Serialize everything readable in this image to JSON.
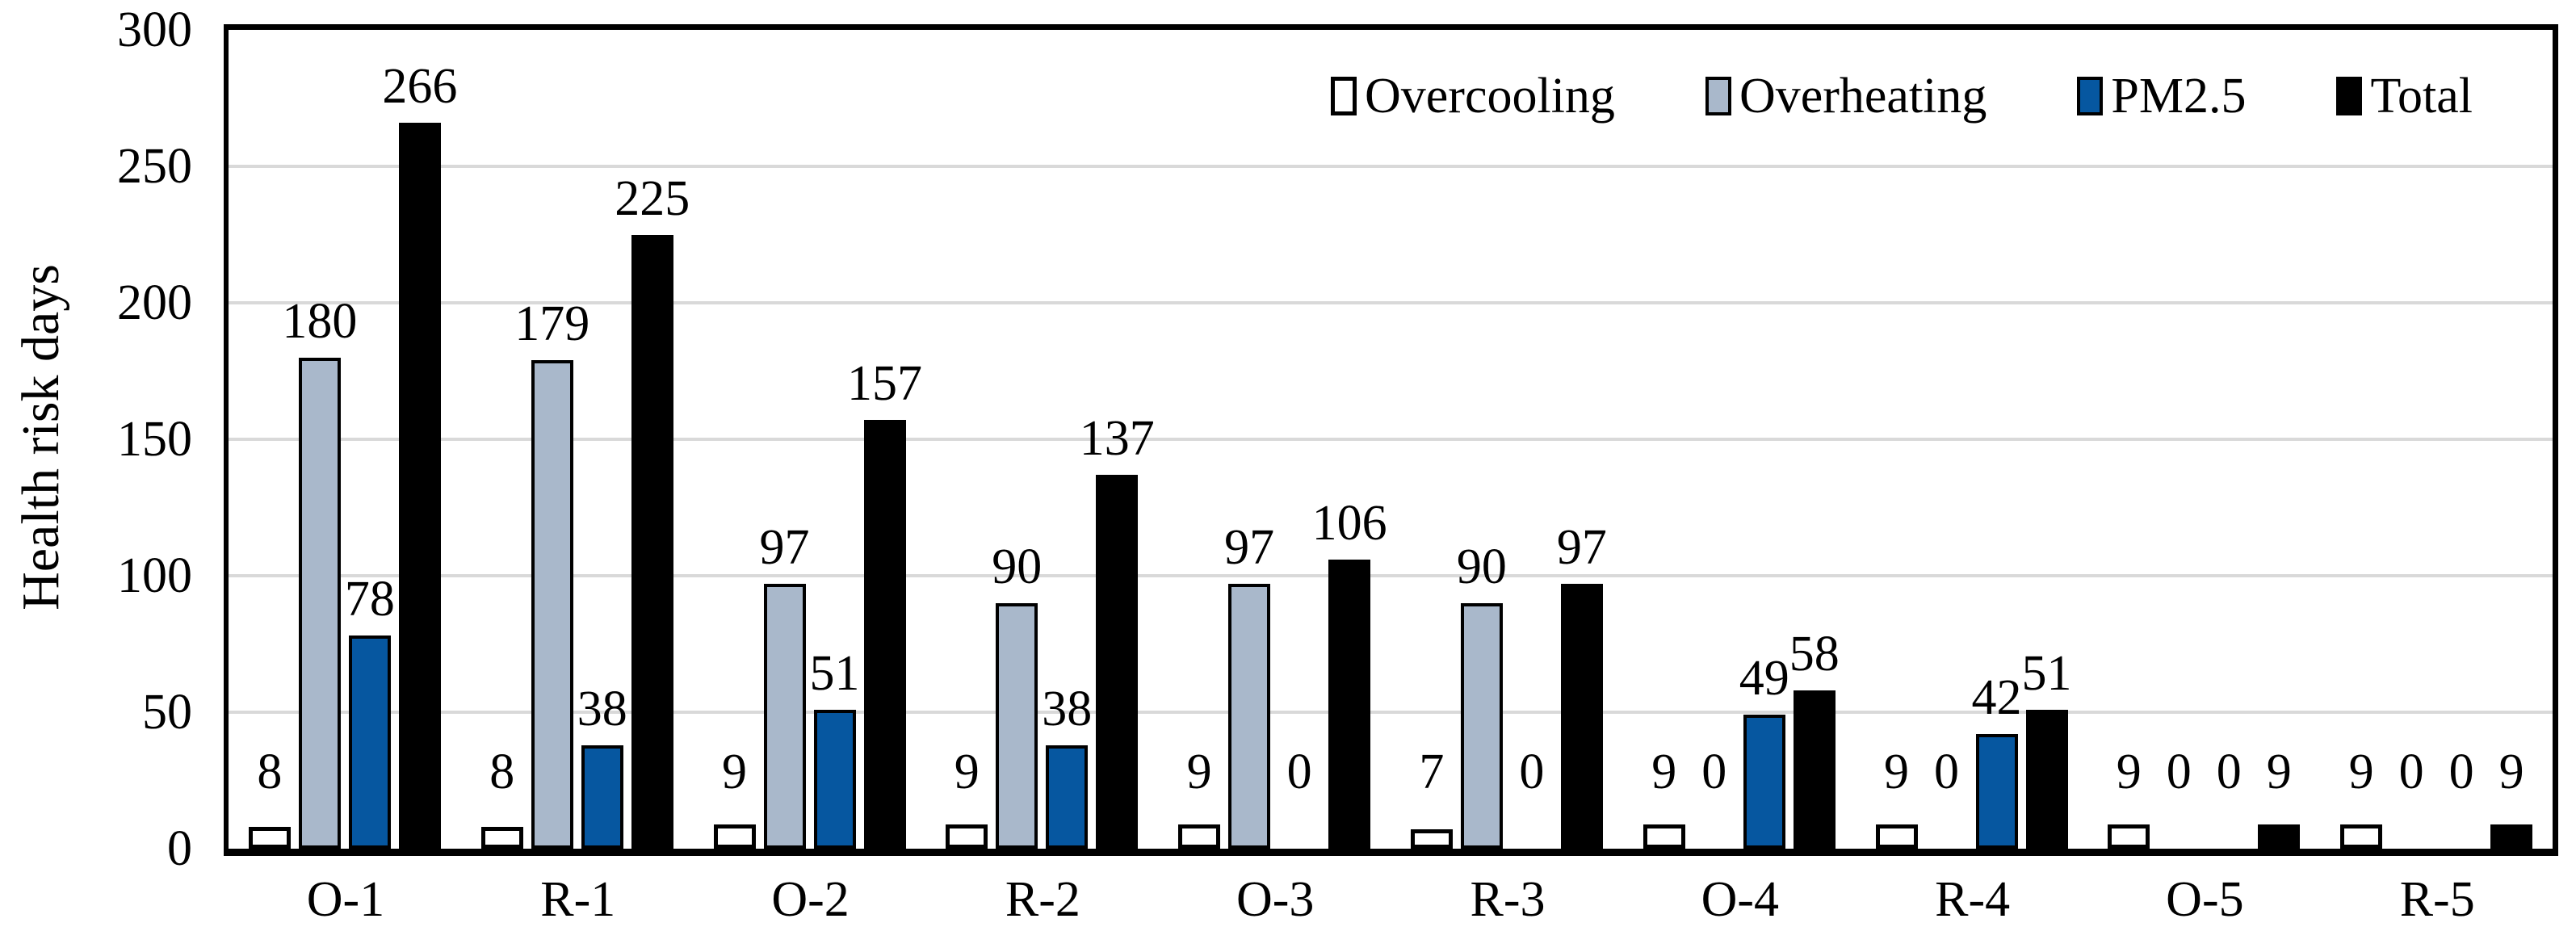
{
  "chart_data": {
    "type": "bar",
    "title": "",
    "xlabel": "",
    "ylabel": "Health risk days",
    "ylim": [
      0,
      300
    ],
    "ytick_step": 50,
    "yticks": [
      0,
      50,
      100,
      150,
      200,
      250,
      300
    ],
    "grid": true,
    "gridline_color": "#d9d9d9",
    "legend_position": "top-right-inside",
    "categories": [
      "O-1",
      "R-1",
      "O-2",
      "R-2",
      "O-3",
      "R-3",
      "O-4",
      "R-4",
      "O-5",
      "R-5"
    ],
    "series": [
      {
        "name": "Overcooling",
        "color": "#ffffff",
        "border_color": "#000000",
        "values": [
          8,
          8,
          9,
          9,
          9,
          7,
          9,
          9,
          9,
          9
        ]
      },
      {
        "name": "Overheating",
        "color": "#a9b8cb",
        "border_color": "#000000",
        "values": [
          180,
          179,
          97,
          90,
          97,
          90,
          0,
          0,
          0,
          0
        ]
      },
      {
        "name": "PM2.5",
        "color": "#0657a0",
        "border_color": "#000000",
        "values": [
          78,
          38,
          51,
          38,
          0,
          0,
          49,
          42,
          0,
          0
        ]
      },
      {
        "name": "Total",
        "color": "#000000",
        "border_color": "#000000",
        "values": [
          266,
          225,
          157,
          137,
          106,
          97,
          58,
          51,
          9,
          9
        ]
      }
    ]
  }
}
